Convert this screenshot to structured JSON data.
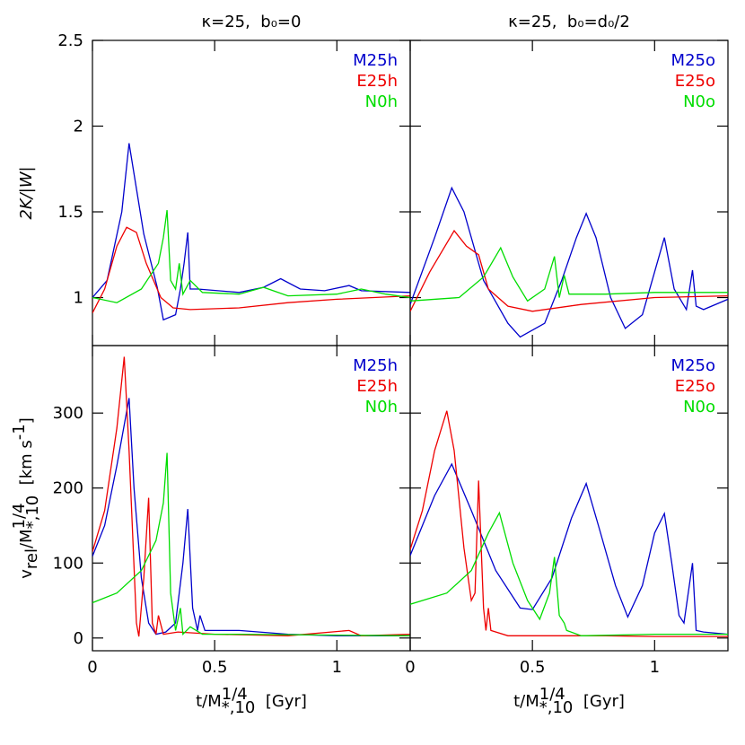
{
  "chart_data": [
    {
      "type": "line",
      "title": "κ=25,  b₀=0",
      "ylabel": [
        "2K/|W|"
      ],
      "xlim": [
        0,
        1.3
      ],
      "ylim": [
        0.72,
        2.5
      ],
      "xticks": [
        0,
        0.5,
        1
      ],
      "yticks": [
        1,
        1.5,
        2,
        2.5
      ],
      "series": [
        {
          "name": "M25h",
          "color": "#0000cc",
          "x": [
            0,
            0.06,
            0.12,
            0.15,
            0.21,
            0.265,
            0.29,
            0.34,
            0.36,
            0.375,
            0.39,
            0.4,
            0.43,
            0.6,
            0.7,
            0.77,
            0.85,
            0.95,
            1.05,
            1.1,
            1.3
          ],
          "values": [
            1.0,
            1.1,
            1.5,
            1.9,
            1.37,
            1.06,
            0.87,
            0.9,
            1.05,
            1.2,
            1.38,
            1.05,
            1.05,
            1.03,
            1.06,
            1.11,
            1.05,
            1.04,
            1.07,
            1.04,
            1.03
          ]
        },
        {
          "name": "E25h",
          "color": "#ee0000",
          "x": [
            0,
            0.05,
            0.1,
            0.14,
            0.18,
            0.22,
            0.28,
            0.33,
            0.4,
            0.6,
            0.8,
            1.0,
            1.3
          ],
          "values": [
            0.91,
            1.05,
            1.3,
            1.41,
            1.38,
            1.2,
            1.0,
            0.94,
            0.93,
            0.94,
            0.97,
            0.99,
            1.01
          ]
        },
        {
          "name": "N0h",
          "color": "#00dd00",
          "x": [
            0,
            0.1,
            0.2,
            0.27,
            0.29,
            0.305,
            0.32,
            0.34,
            0.355,
            0.37,
            0.4,
            0.45,
            0.6,
            0.7,
            0.8,
            1.0,
            1.1,
            1.2,
            1.3
          ],
          "values": [
            1.0,
            0.97,
            1.05,
            1.2,
            1.35,
            1.51,
            1.1,
            1.05,
            1.2,
            1.02,
            1.1,
            1.03,
            1.02,
            1.06,
            1.01,
            1.02,
            1.05,
            1.02,
            1.0
          ]
        }
      ]
    },
    {
      "type": "line",
      "title": "κ=25,  b₀=d₀/2",
      "xlim": [
        0,
        1.3
      ],
      "ylim": [
        0.72,
        2.5
      ],
      "xticks": [
        0,
        0.5,
        1
      ],
      "yticks": [
        1,
        1.5,
        2,
        2.5
      ],
      "series": [
        {
          "name": "M25o",
          "color": "#0000cc",
          "x": [
            0,
            0.1,
            0.17,
            0.22,
            0.3,
            0.4,
            0.45,
            0.55,
            0.62,
            0.68,
            0.72,
            0.76,
            0.82,
            0.88,
            0.95,
            1.0,
            1.04,
            1.08,
            1.13,
            1.155,
            1.17,
            1.2,
            1.3
          ],
          "values": [
            0.96,
            1.35,
            1.64,
            1.5,
            1.1,
            0.85,
            0.77,
            0.85,
            1.1,
            1.35,
            1.49,
            1.35,
            1.0,
            0.82,
            0.9,
            1.15,
            1.35,
            1.05,
            0.93,
            1.16,
            0.95,
            0.93,
            0.99
          ]
        },
        {
          "name": "E25o",
          "color": "#ee0000",
          "x": [
            0,
            0.08,
            0.18,
            0.23,
            0.28,
            0.32,
            0.4,
            0.5,
            0.7,
            1.0,
            1.3
          ],
          "values": [
            0.92,
            1.15,
            1.39,
            1.3,
            1.25,
            1.05,
            0.95,
            0.92,
            0.96,
            1.0,
            1.01
          ]
        },
        {
          "name": "N0o",
          "color": "#00dd00",
          "x": [
            0,
            0.2,
            0.3,
            0.37,
            0.42,
            0.48,
            0.55,
            0.59,
            0.61,
            0.63,
            0.65,
            0.8,
            1.0,
            1.3
          ],
          "values": [
            0.98,
            1.0,
            1.12,
            1.29,
            1.12,
            0.98,
            1.05,
            1.24,
            1.0,
            1.13,
            1.02,
            1.02,
            1.03,
            1.03
          ]
        }
      ]
    },
    {
      "type": "line",
      "ylabel": [
        "v",
        "rel",
        "/M",
        "1/4",
        "*,10",
        "  [km s",
        "-1",
        "]"
      ],
      "xlabel": [
        "t/M",
        "1/4",
        "*,10",
        "  [Gyr]"
      ],
      "xlim": [
        0,
        1.3
      ],
      "ylim": [
        -17,
        390
      ],
      "xticks": [
        0,
        0.5,
        1
      ],
      "yticks": [
        0,
        100,
        200,
        300
      ],
      "series": [
        {
          "name": "M25h",
          "color": "#0000cc",
          "x": [
            0,
            0.05,
            0.1,
            0.15,
            0.17,
            0.2,
            0.23,
            0.26,
            0.3,
            0.34,
            0.37,
            0.39,
            0.41,
            0.43,
            0.44,
            0.46,
            0.6,
            0.8,
            1.0,
            1.3
          ],
          "values": [
            109,
            150,
            230,
            320,
            200,
            80,
            20,
            5,
            8,
            20,
            100,
            172,
            40,
            10,
            30,
            10,
            10,
            5,
            3,
            3
          ]
        },
        {
          "name": "E25h",
          "color": "#ee0000",
          "x": [
            0,
            0.05,
            0.1,
            0.13,
            0.15,
            0.18,
            0.19,
            0.21,
            0.23,
            0.245,
            0.26,
            0.27,
            0.29,
            0.35,
            0.5,
            0.8,
            1.05,
            1.1,
            1.3
          ],
          "values": [
            115,
            170,
            280,
            375,
            250,
            20,
            2,
            80,
            187,
            20,
            5,
            30,
            5,
            8,
            5,
            3,
            10,
            3,
            5
          ]
        },
        {
          "name": "N0h",
          "color": "#00dd00",
          "x": [
            0,
            0.1,
            0.2,
            0.26,
            0.29,
            0.305,
            0.32,
            0.34,
            0.36,
            0.37,
            0.4,
            0.45,
            0.6,
            1.3
          ],
          "values": [
            47,
            60,
            90,
            130,
            180,
            247,
            60,
            10,
            40,
            5,
            15,
            5,
            5,
            3
          ]
        }
      ]
    },
    {
      "type": "line",
      "xlabel": [
        "t/M",
        "1/4",
        "*,10",
        "  [Gyr]"
      ],
      "xlim": [
        0,
        1.3
      ],
      "ylim": [
        -17,
        390
      ],
      "xticks": [
        0,
        0.5,
        1
      ],
      "yticks": [
        0,
        100,
        200,
        300
      ],
      "series": [
        {
          "name": "M25o",
          "color": "#0000cc",
          "x": [
            0,
            0.05,
            0.1,
            0.17,
            0.25,
            0.35,
            0.45,
            0.5,
            0.58,
            0.66,
            0.72,
            0.77,
            0.84,
            0.89,
            0.95,
            1.0,
            1.04,
            1.07,
            1.1,
            1.12,
            1.155,
            1.17,
            1.2,
            1.3
          ],
          "values": [
            110,
            150,
            190,
            232,
            170,
            90,
            40,
            38,
            80,
            160,
            206,
            150,
            70,
            28,
            70,
            140,
            166,
            100,
            30,
            20,
            100,
            10,
            8,
            5
          ]
        },
        {
          "name": "E25o",
          "color": "#ee0000",
          "x": [
            0,
            0.05,
            0.1,
            0.15,
            0.18,
            0.22,
            0.25,
            0.265,
            0.28,
            0.3,
            0.31,
            0.32,
            0.33,
            0.4,
            0.6,
            0.8,
            1.0,
            1.3
          ],
          "values": [
            118,
            170,
            250,
            303,
            250,
            120,
            50,
            60,
            210,
            40,
            10,
            40,
            10,
            3,
            3,
            3,
            2,
            2
          ]
        },
        {
          "name": "N0o",
          "color": "#00dd00",
          "x": [
            0,
            0.15,
            0.25,
            0.32,
            0.365,
            0.42,
            0.48,
            0.53,
            0.57,
            0.59,
            0.61,
            0.63,
            0.64,
            0.7,
            1.0,
            1.3
          ],
          "values": [
            45,
            60,
            90,
            140,
            167,
            100,
            50,
            25,
            60,
            108,
            30,
            20,
            10,
            3,
            5,
            5
          ]
        }
      ]
    }
  ]
}
